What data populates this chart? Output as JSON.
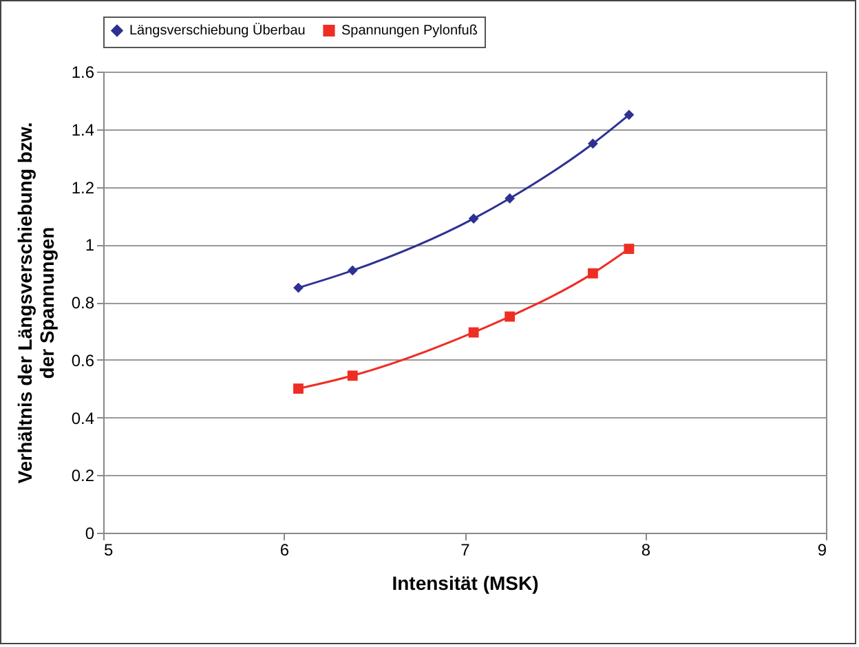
{
  "chart_data": {
    "type": "line",
    "xlabel": "Intensität (MSK)",
    "ylabel": "Verhältnis der Längsverschiebung bzw. der Spannungen",
    "x": [
      6.08,
      6.38,
      7.05,
      7.25,
      7.71,
      7.91
    ],
    "series": [
      {
        "name": "Längsverschiebung Überbau",
        "color": "#2e3192",
        "marker": "diamond",
        "values": [
          0.85,
          0.91,
          1.09,
          1.16,
          1.35,
          1.45
        ]
      },
      {
        "name": "Spannungen Pylonfuß",
        "color": "#ee2e24",
        "marker": "square",
        "values": [
          0.5,
          0.545,
          0.695,
          0.75,
          0.9,
          0.985
        ]
      }
    ],
    "xlim": [
      5,
      9
    ],
    "xticks": [
      5,
      6,
      7,
      8,
      9
    ],
    "ylim": [
      0,
      1.6
    ],
    "yticks": [
      0,
      0.2,
      0.4,
      0.6,
      0.8,
      1,
      1.2,
      1.4,
      1.6
    ],
    "grid": "y",
    "legend": "top"
  }
}
